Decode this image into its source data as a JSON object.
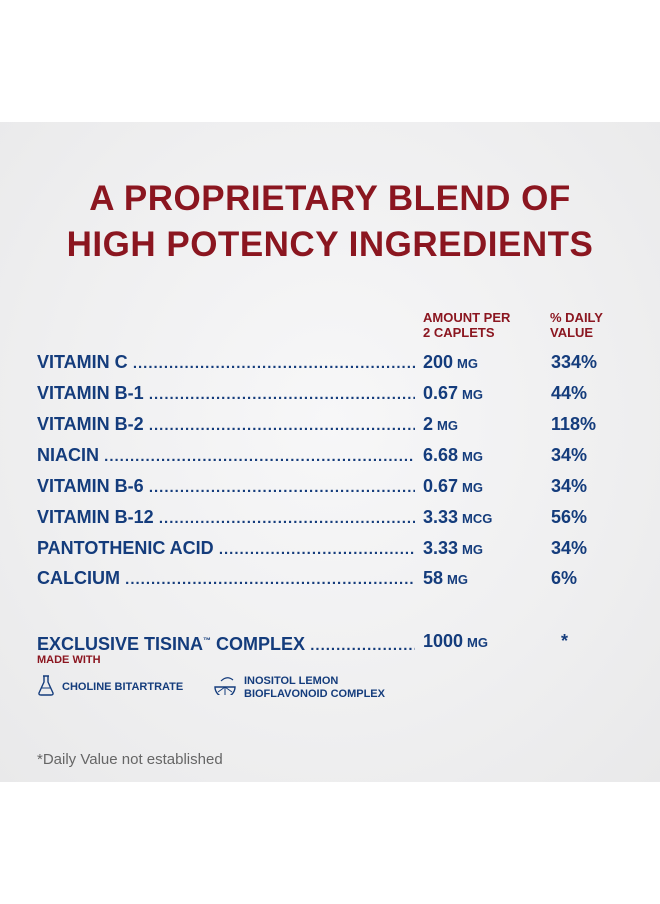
{
  "title": {
    "line1": "A PROPRIETARY BLEND OF",
    "line2": "HIGH POTENCY INGREDIENTS"
  },
  "columns": {
    "amount_line1": "AMOUNT PER",
    "amount_line2": "2 CAPLETS",
    "daily_line1": "% DAILY",
    "daily_line2": "VALUE"
  },
  "ingredients": [
    {
      "name": "VITAMIN C",
      "amount": "200",
      "unit": "MG",
      "daily_value": "334%"
    },
    {
      "name": "VITAMIN B-1",
      "amount": "0.67",
      "unit": "MG",
      "daily_value": "44%"
    },
    {
      "name": "VITAMIN B-2",
      "amount": "2",
      "unit": "MG",
      "daily_value": "118%"
    },
    {
      "name": "NIACIN",
      "amount": "6.68",
      "unit": "MG",
      "daily_value": "34%"
    },
    {
      "name": "VITAMIN B-6",
      "amount": "0.67",
      "unit": "MG",
      "daily_value": "34%"
    },
    {
      "name": "VITAMIN B-12",
      "amount": "3.33",
      "unit": "MCG",
      "daily_value": "56%"
    },
    {
      "name": "PANTOTHENIC ACID",
      "amount": "3.33",
      "unit": "MG",
      "daily_value": "34%"
    },
    {
      "name": "CALCIUM",
      "amount": "58",
      "unit": "MG",
      "daily_value": "6%"
    }
  ],
  "complex": {
    "name": "EXCLUSIVE TISINA",
    "trademark": "™",
    "name_suffix": "COMPLEX",
    "amount": "1000",
    "unit": "MG",
    "daily_value": "*",
    "made_with": "MADE WITH",
    "component1": "CHOLINE BITARTRATE",
    "component2_line1": "INOSITOL LEMON",
    "component2_line2": "BIOFLAVONOID COMPLEX",
    "component1_icon": "flask-icon",
    "component2_icon": "lemon-slice-icon"
  },
  "footnote": "*Daily Value not established",
  "colors": {
    "title_red": "#8b1620",
    "text_blue": "#143c7c",
    "panel_gray": "#efeff0"
  }
}
